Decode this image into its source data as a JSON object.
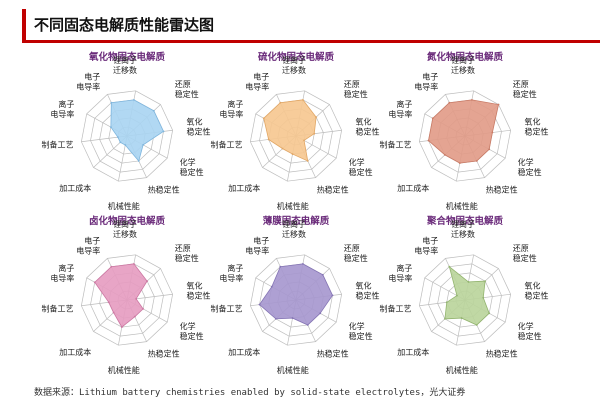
{
  "header": {
    "title": "不同固态电解质性能雷达图"
  },
  "footer": {
    "source": "数据来源：Lithium battery chemistries enabled by solid-state electrolytes，光大证券"
  },
  "chart_data": [
    {
      "type": "radar",
      "title": "氧化物固态电解质",
      "axes": [
        "锂离子迁移数",
        "还原稳定性",
        "氧化稳定性",
        "化学稳定性",
        "热稳定性",
        "机械性能",
        "加工成本",
        "制备工艺",
        "离子电导率",
        "电子电导率"
      ],
      "rmax": 5,
      "values": [
        4,
        4,
        4,
        2,
        3,
        1,
        1,
        1,
        2,
        4
      ],
      "color": "#a9d4f2",
      "stroke": "#7fb6de"
    },
    {
      "type": "radar",
      "title": "硫化物固态电解质",
      "axes": [
        "锂离子迁移数",
        "还原稳定性",
        "氧化稳定性",
        "化学稳定性",
        "热稳定性",
        "机械性能",
        "加工成本",
        "制备工艺",
        "离子电导率",
        "电子电导率"
      ],
      "rmax": 5,
      "values": [
        4,
        3,
        2,
        1,
        3,
        2,
        2,
        3,
        4,
        4
      ],
      "color": "#f6c78f",
      "stroke": "#e2a765"
    },
    {
      "type": "radar",
      "title": "氮化物固态电解质",
      "axes": [
        "锂离子迁移数",
        "还原稳定性",
        "氧化稳定性",
        "化学稳定性",
        "热稳定性",
        "机械性能",
        "加工成本",
        "制备工艺",
        "离子电导率",
        "电子电导率"
      ],
      "rmax": 5,
      "values": [
        4,
        5,
        3,
        3,
        3,
        3,
        3,
        4,
        4,
        4
      ],
      "color": "#e19a86",
      "stroke": "#c97b66"
    },
    {
      "type": "radar",
      "title": "卤化物固态电解质",
      "axes": [
        "锂离子迁移数",
        "还原稳定性",
        "氧化稳定性",
        "化学稳定性",
        "热稳定性",
        "机械性能",
        "加工成本",
        "制备工艺",
        "离子电导率",
        "电子电导率"
      ],
      "rmax": 5,
      "values": [
        4,
        3,
        1,
        2,
        2,
        3,
        2,
        2,
        4,
        4
      ],
      "color": "#e59bc0",
      "stroke": "#cc77a2"
    },
    {
      "type": "radar",
      "title": "薄膜固态电解质",
      "axes": [
        "锂离子迁移数",
        "还原稳定性",
        "氧化稳定性",
        "化学稳定性",
        "热稳定性",
        "机械性能",
        "加工成本",
        "制备工艺",
        "离子电导率",
        "电子电导率"
      ],
      "rmax": 5,
      "values": [
        4,
        4,
        4,
        3,
        3,
        2,
        3,
        4,
        3,
        4
      ],
      "color": "#a596ce",
      "stroke": "#8575b5"
    },
    {
      "type": "radar",
      "title": "聚合物固态电解质",
      "axes": [
        "锂离子迁移数",
        "还原稳定性",
        "氧化稳定性",
        "化学稳定性",
        "热稳定性",
        "机械性能",
        "加工成本",
        "制备工艺",
        "离子电导率",
        "电子电导率"
      ],
      "rmax": 5,
      "values": [
        2,
        3,
        2,
        3,
        3,
        2,
        3,
        2,
        1,
        4
      ],
      "color": "#b9d49a",
      "stroke": "#93b46f"
    }
  ]
}
